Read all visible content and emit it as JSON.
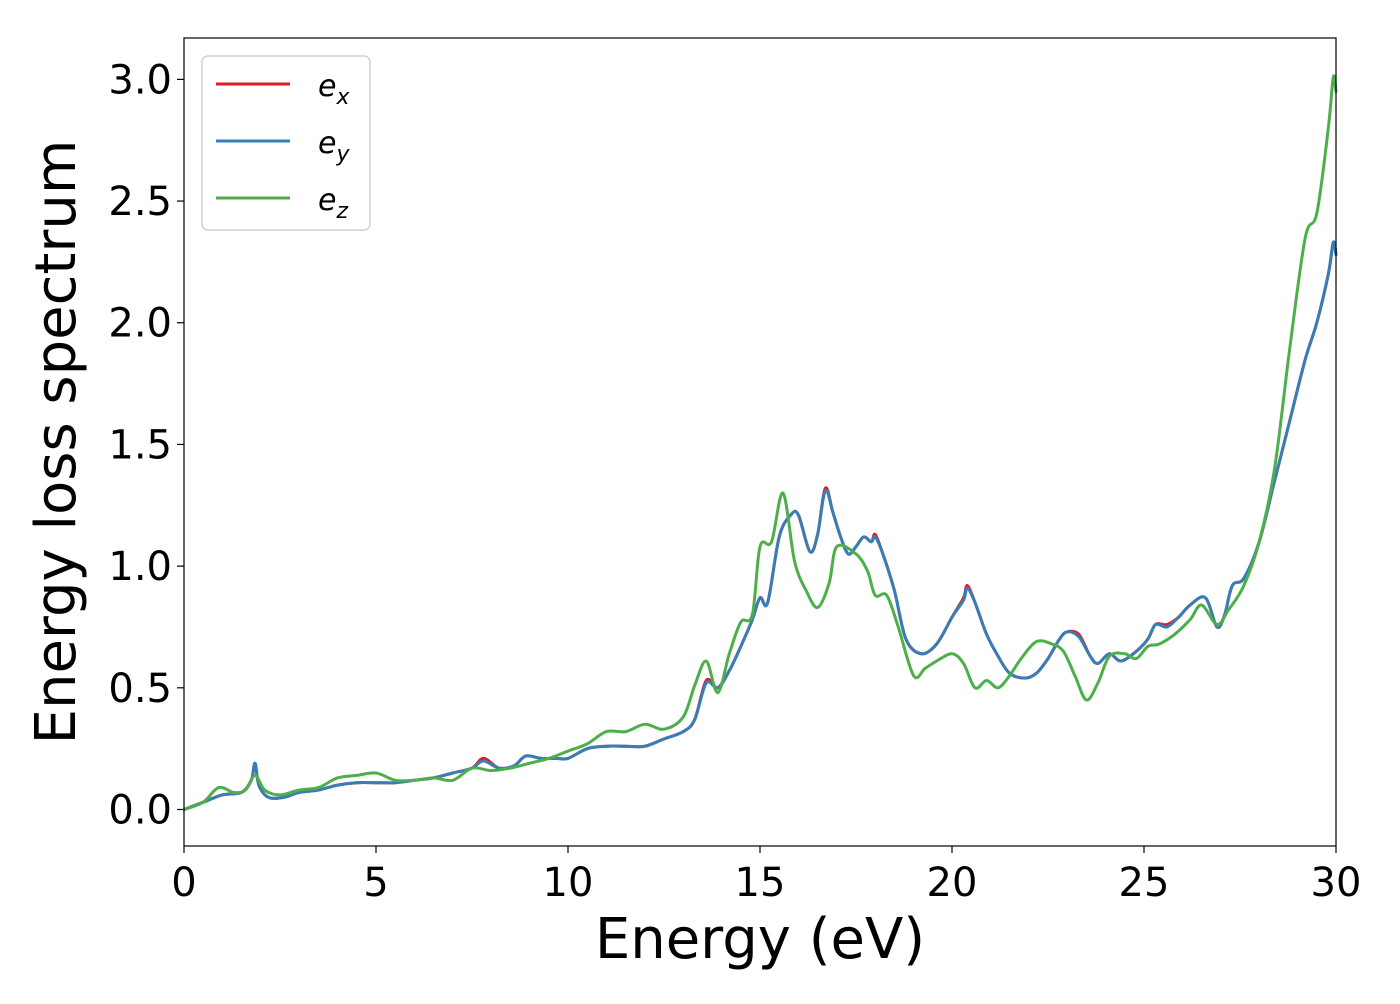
{
  "chart_data": {
    "type": "line",
    "xlabel": "Energy (eV)",
    "ylabel": "Energy loss spectrum",
    "xlim": [
      0,
      30
    ],
    "ylim": [
      -0.15,
      3.17
    ],
    "x_ticks": [
      0,
      5,
      10,
      15,
      20,
      25,
      30
    ],
    "y_ticks": [
      0.0,
      0.5,
      1.0,
      1.5,
      2.0,
      2.5,
      3.0
    ],
    "x_tick_labels": [
      "0",
      "5",
      "10",
      "15",
      "20",
      "25",
      "30"
    ],
    "y_tick_labels": [
      "0.0",
      "0.5",
      "1.0",
      "1.5",
      "2.0",
      "2.5",
      "3.0"
    ],
    "grid": false,
    "legend_position": "top-left",
    "series": [
      {
        "name": "e_x",
        "label_main": "e",
        "label_sub": "x",
        "color": "#e41a1c",
        "points": [
          [
            0,
            0.0
          ],
          [
            0.5,
            0.03
          ],
          [
            1.0,
            0.06
          ],
          [
            1.5,
            0.07
          ],
          [
            1.75,
            0.12
          ],
          [
            1.85,
            0.19
          ],
          [
            1.95,
            0.1
          ],
          [
            2.2,
            0.05
          ],
          [
            2.6,
            0.05
          ],
          [
            3.0,
            0.07
          ],
          [
            3.5,
            0.08
          ],
          [
            4.0,
            0.1
          ],
          [
            4.5,
            0.11
          ],
          [
            5.0,
            0.11
          ],
          [
            5.5,
            0.11
          ],
          [
            6.0,
            0.12
          ],
          [
            6.5,
            0.13
          ],
          [
            7.0,
            0.15
          ],
          [
            7.5,
            0.17
          ],
          [
            7.8,
            0.21
          ],
          [
            8.2,
            0.17
          ],
          [
            8.6,
            0.18
          ],
          [
            8.9,
            0.22
          ],
          [
            9.3,
            0.21
          ],
          [
            9.7,
            0.21
          ],
          [
            10.0,
            0.21
          ],
          [
            10.5,
            0.25
          ],
          [
            11.0,
            0.26
          ],
          [
            11.5,
            0.26
          ],
          [
            12.0,
            0.26
          ],
          [
            12.5,
            0.29
          ],
          [
            13.0,
            0.32
          ],
          [
            13.3,
            0.37
          ],
          [
            13.6,
            0.53
          ],
          [
            13.9,
            0.5
          ],
          [
            14.2,
            0.57
          ],
          [
            14.5,
            0.67
          ],
          [
            14.8,
            0.78
          ],
          [
            15.0,
            0.87
          ],
          [
            15.2,
            0.85
          ],
          [
            15.5,
            1.12
          ],
          [
            15.8,
            1.21
          ],
          [
            16.0,
            1.21
          ],
          [
            16.3,
            1.06
          ],
          [
            16.5,
            1.13
          ],
          [
            16.7,
            1.32
          ],
          [
            16.9,
            1.22
          ],
          [
            17.1,
            1.12
          ],
          [
            17.3,
            1.05
          ],
          [
            17.5,
            1.08
          ],
          [
            17.7,
            1.12
          ],
          [
            17.9,
            1.1
          ],
          [
            18.0,
            1.13
          ],
          [
            18.2,
            1.05
          ],
          [
            18.5,
            0.9
          ],
          [
            18.8,
            0.7
          ],
          [
            19.2,
            0.64
          ],
          [
            19.6,
            0.68
          ],
          [
            20.0,
            0.79
          ],
          [
            20.3,
            0.87
          ],
          [
            20.4,
            0.92
          ],
          [
            20.6,
            0.85
          ],
          [
            20.9,
            0.72
          ],
          [
            21.2,
            0.63
          ],
          [
            21.5,
            0.56
          ],
          [
            21.9,
            0.54
          ],
          [
            22.2,
            0.56
          ],
          [
            22.5,
            0.62
          ],
          [
            22.8,
            0.7
          ],
          [
            23.0,
            0.73
          ],
          [
            23.3,
            0.72
          ],
          [
            23.6,
            0.63
          ],
          [
            23.8,
            0.6
          ],
          [
            24.1,
            0.64
          ],
          [
            24.4,
            0.61
          ],
          [
            24.8,
            0.65
          ],
          [
            25.1,
            0.7
          ],
          [
            25.3,
            0.76
          ],
          [
            25.6,
            0.76
          ],
          [
            25.9,
            0.79
          ],
          [
            26.2,
            0.84
          ],
          [
            26.6,
            0.87
          ],
          [
            26.9,
            0.75
          ],
          [
            27.1,
            0.8
          ],
          [
            27.3,
            0.92
          ],
          [
            27.6,
            0.95
          ],
          [
            28.0,
            1.1
          ],
          [
            28.4,
            1.35
          ],
          [
            28.8,
            1.6
          ],
          [
            29.2,
            1.85
          ],
          [
            29.5,
            2.0
          ],
          [
            29.8,
            2.2
          ],
          [
            29.93,
            2.33
          ],
          [
            30.0,
            2.28
          ]
        ]
      },
      {
        "name": "e_y",
        "label_main": "e",
        "label_sub": "y",
        "color": "#377eb8",
        "points": [
          [
            0,
            0.0
          ],
          [
            0.5,
            0.03
          ],
          [
            1.0,
            0.06
          ],
          [
            1.5,
            0.07
          ],
          [
            1.75,
            0.12
          ],
          [
            1.85,
            0.19
          ],
          [
            1.95,
            0.1
          ],
          [
            2.2,
            0.05
          ],
          [
            2.6,
            0.05
          ],
          [
            3.0,
            0.07
          ],
          [
            3.5,
            0.08
          ],
          [
            4.0,
            0.1
          ],
          [
            4.5,
            0.11
          ],
          [
            5.0,
            0.11
          ],
          [
            5.5,
            0.11
          ],
          [
            6.0,
            0.12
          ],
          [
            6.5,
            0.13
          ],
          [
            7.0,
            0.15
          ],
          [
            7.5,
            0.17
          ],
          [
            7.8,
            0.2
          ],
          [
            8.2,
            0.17
          ],
          [
            8.6,
            0.18
          ],
          [
            8.9,
            0.22
          ],
          [
            9.3,
            0.21
          ],
          [
            9.7,
            0.21
          ],
          [
            10.0,
            0.21
          ],
          [
            10.5,
            0.25
          ],
          [
            11.0,
            0.26
          ],
          [
            11.5,
            0.26
          ],
          [
            12.0,
            0.26
          ],
          [
            12.5,
            0.29
          ],
          [
            13.0,
            0.32
          ],
          [
            13.3,
            0.37
          ],
          [
            13.6,
            0.52
          ],
          [
            13.9,
            0.5
          ],
          [
            14.2,
            0.57
          ],
          [
            14.5,
            0.67
          ],
          [
            14.8,
            0.78
          ],
          [
            15.0,
            0.87
          ],
          [
            15.2,
            0.85
          ],
          [
            15.5,
            1.12
          ],
          [
            15.8,
            1.21
          ],
          [
            16.0,
            1.21
          ],
          [
            16.3,
            1.06
          ],
          [
            16.5,
            1.13
          ],
          [
            16.7,
            1.31
          ],
          [
            16.9,
            1.22
          ],
          [
            17.1,
            1.12
          ],
          [
            17.3,
            1.05
          ],
          [
            17.5,
            1.08
          ],
          [
            17.7,
            1.12
          ],
          [
            17.9,
            1.1
          ],
          [
            18.0,
            1.12
          ],
          [
            18.2,
            1.05
          ],
          [
            18.5,
            0.9
          ],
          [
            18.8,
            0.7
          ],
          [
            19.2,
            0.64
          ],
          [
            19.6,
            0.68
          ],
          [
            20.0,
            0.79
          ],
          [
            20.3,
            0.86
          ],
          [
            20.4,
            0.91
          ],
          [
            20.6,
            0.85
          ],
          [
            20.9,
            0.72
          ],
          [
            21.2,
            0.63
          ],
          [
            21.5,
            0.56
          ],
          [
            21.9,
            0.54
          ],
          [
            22.2,
            0.56
          ],
          [
            22.5,
            0.62
          ],
          [
            22.8,
            0.7
          ],
          [
            23.0,
            0.73
          ],
          [
            23.3,
            0.71
          ],
          [
            23.6,
            0.63
          ],
          [
            23.8,
            0.6
          ],
          [
            24.1,
            0.64
          ],
          [
            24.4,
            0.61
          ],
          [
            24.8,
            0.65
          ],
          [
            25.1,
            0.7
          ],
          [
            25.3,
            0.76
          ],
          [
            25.6,
            0.75
          ],
          [
            25.9,
            0.79
          ],
          [
            26.2,
            0.84
          ],
          [
            26.6,
            0.87
          ],
          [
            26.9,
            0.75
          ],
          [
            27.1,
            0.8
          ],
          [
            27.3,
            0.92
          ],
          [
            27.6,
            0.95
          ],
          [
            28.0,
            1.1
          ],
          [
            28.4,
            1.35
          ],
          [
            28.8,
            1.6
          ],
          [
            29.2,
            1.85
          ],
          [
            29.5,
            2.0
          ],
          [
            29.8,
            2.2
          ],
          [
            29.93,
            2.33
          ],
          [
            30.0,
            2.28
          ]
        ]
      },
      {
        "name": "e_z",
        "label_main": "e",
        "label_sub": "z",
        "color": "#4daf4a",
        "points": [
          [
            0,
            0.0
          ],
          [
            0.5,
            0.03
          ],
          [
            0.9,
            0.09
          ],
          [
            1.3,
            0.07
          ],
          [
            1.6,
            0.08
          ],
          [
            1.85,
            0.14
          ],
          [
            2.1,
            0.08
          ],
          [
            2.5,
            0.06
          ],
          [
            3.0,
            0.08
          ],
          [
            3.5,
            0.09
          ],
          [
            4.0,
            0.13
          ],
          [
            4.5,
            0.14
          ],
          [
            5.0,
            0.15
          ],
          [
            5.5,
            0.12
          ],
          [
            6.0,
            0.12
          ],
          [
            6.5,
            0.13
          ],
          [
            7.0,
            0.12
          ],
          [
            7.5,
            0.17
          ],
          [
            8.0,
            0.16
          ],
          [
            8.5,
            0.17
          ],
          [
            9.0,
            0.19
          ],
          [
            9.5,
            0.21
          ],
          [
            10.0,
            0.24
          ],
          [
            10.5,
            0.27
          ],
          [
            11.0,
            0.32
          ],
          [
            11.5,
            0.32
          ],
          [
            12.0,
            0.35
          ],
          [
            12.5,
            0.33
          ],
          [
            13.0,
            0.38
          ],
          [
            13.3,
            0.51
          ],
          [
            13.6,
            0.61
          ],
          [
            13.9,
            0.48
          ],
          [
            14.2,
            0.64
          ],
          [
            14.5,
            0.77
          ],
          [
            14.8,
            0.8
          ],
          [
            15.0,
            1.08
          ],
          [
            15.3,
            1.1
          ],
          [
            15.6,
            1.3
          ],
          [
            15.9,
            1.02
          ],
          [
            16.2,
            0.9
          ],
          [
            16.5,
            0.83
          ],
          [
            16.8,
            0.93
          ],
          [
            17.0,
            1.08
          ],
          [
            17.5,
            1.05
          ],
          [
            17.8,
            0.98
          ],
          [
            18.0,
            0.88
          ],
          [
            18.3,
            0.88
          ],
          [
            18.6,
            0.75
          ],
          [
            19.0,
            0.55
          ],
          [
            19.3,
            0.58
          ],
          [
            19.6,
            0.61
          ],
          [
            20.0,
            0.64
          ],
          [
            20.3,
            0.6
          ],
          [
            20.6,
            0.5
          ],
          [
            20.9,
            0.53
          ],
          [
            21.2,
            0.5
          ],
          [
            21.5,
            0.55
          ],
          [
            21.8,
            0.62
          ],
          [
            22.2,
            0.69
          ],
          [
            22.6,
            0.68
          ],
          [
            22.9,
            0.65
          ],
          [
            23.2,
            0.55
          ],
          [
            23.5,
            0.45
          ],
          [
            23.8,
            0.52
          ],
          [
            24.1,
            0.63
          ],
          [
            24.5,
            0.64
          ],
          [
            24.8,
            0.62
          ],
          [
            25.1,
            0.67
          ],
          [
            25.4,
            0.68
          ],
          [
            25.8,
            0.72
          ],
          [
            26.2,
            0.78
          ],
          [
            26.5,
            0.84
          ],
          [
            26.9,
            0.76
          ],
          [
            27.2,
            0.82
          ],
          [
            27.6,
            0.92
          ],
          [
            28.0,
            1.1
          ],
          [
            28.4,
            1.4
          ],
          [
            28.8,
            1.9
          ],
          [
            29.2,
            2.35
          ],
          [
            29.5,
            2.45
          ],
          [
            29.8,
            2.8
          ],
          [
            29.93,
            3.01
          ],
          [
            30.0,
            2.95
          ]
        ]
      }
    ]
  }
}
